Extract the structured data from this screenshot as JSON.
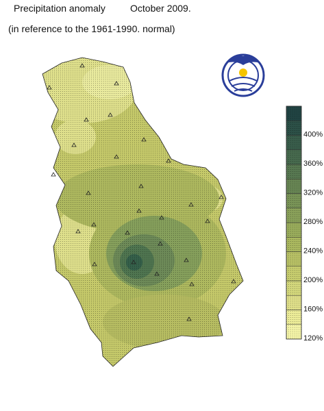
{
  "header": {
    "title": "Precipitation anomaly",
    "date": "October 2009.",
    "subtitle": "(in reference to the 1961-1990. normal)"
  },
  "legend": {
    "labels": [
      "120%",
      "160%",
      "200%",
      "240%",
      "280%",
      "320%",
      "360%",
      "400%"
    ]
  }
}
